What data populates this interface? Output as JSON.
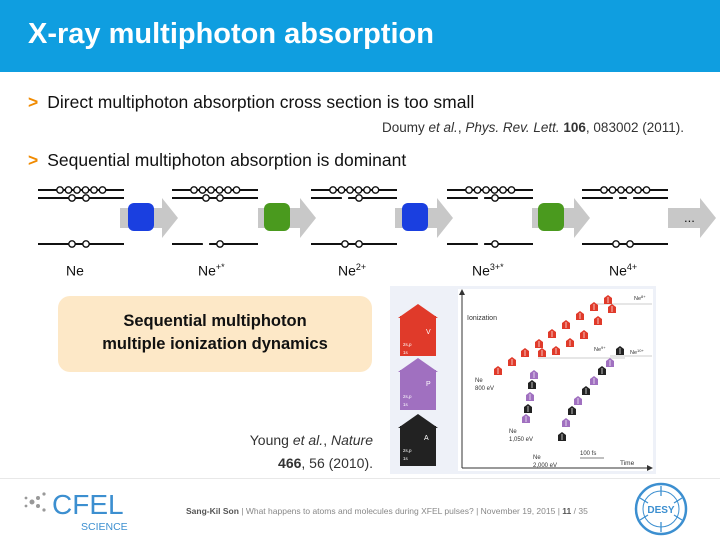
{
  "slide": {
    "title": "X-ray multiphoton absorption",
    "bullets": [
      {
        "marker": ">",
        "text": "Direct multiphoton absorption cross section is too small"
      },
      {
        "marker": ">",
        "text": "Sequential multiphoton absorption is dominant"
      }
    ],
    "reference_1": {
      "authors": "Doumy",
      "etal": " et al.",
      "sep": ", ",
      "journal": "Phys. Rev. Lett.",
      "volume": "106",
      "rest": ", 083002 (2011)."
    },
    "ions": [
      {
        "base": "Ne",
        "sup": ""
      },
      {
        "base": "Ne",
        "sup": "+*"
      },
      {
        "base": "Ne",
        "sup": "2+"
      },
      {
        "base": "Ne",
        "sup": "3+*"
      },
      {
        "base": "Ne",
        "sup": "4+"
      }
    ],
    "ellipsis": "...",
    "box": {
      "line1": "Sequential multiphoton",
      "line2": "multiple ionization dynamics"
    },
    "reference_2": {
      "authors": "Young",
      "etal": " et al.",
      "sep": ", ",
      "journal": "Nature",
      "volume": "466",
      "rest": ", 56 (2010)."
    },
    "figure": {
      "ionization_label": "Ionization",
      "time_label": "Time",
      "time_scale": "100 fs",
      "ion_labels": [
        "Ne",
        "8+",
        "Ne",
        "9+",
        "Ne",
        "10+"
      ],
      "energy_labels": [
        {
          "line1": "Ne",
          "line2": "800 eV"
        },
        {
          "line1": "Ne",
          "line2": "1,050 eV"
        },
        {
          "line1": "Ne",
          "line2": "2,000 eV"
        }
      ],
      "process_letters": [
        "V",
        "P",
        "A"
      ],
      "orbitals": [
        "2s,p",
        "1s"
      ]
    },
    "footer": {
      "author": "Sang-Kil Son",
      "sep": "  |  ",
      "talk": "What happens to atoms and molecules during XFEL pulses?",
      "date": "November 19, 2015",
      "page": "11",
      "total": "35"
    },
    "logos": {
      "cfel_text": "CFEL",
      "cfel_sub": "SCIENCE",
      "desy_text": "DESY"
    }
  },
  "colors": {
    "title_bg": "#0f9ee0",
    "bullet_marker": "#f08a00",
    "photon_blue": "#1a3fe0",
    "photon_green": "#4a9a1e",
    "arrow_gray": "#c8c8c8",
    "box_bg": "#fde8c7",
    "logo_blue": "#3c8fd0"
  }
}
